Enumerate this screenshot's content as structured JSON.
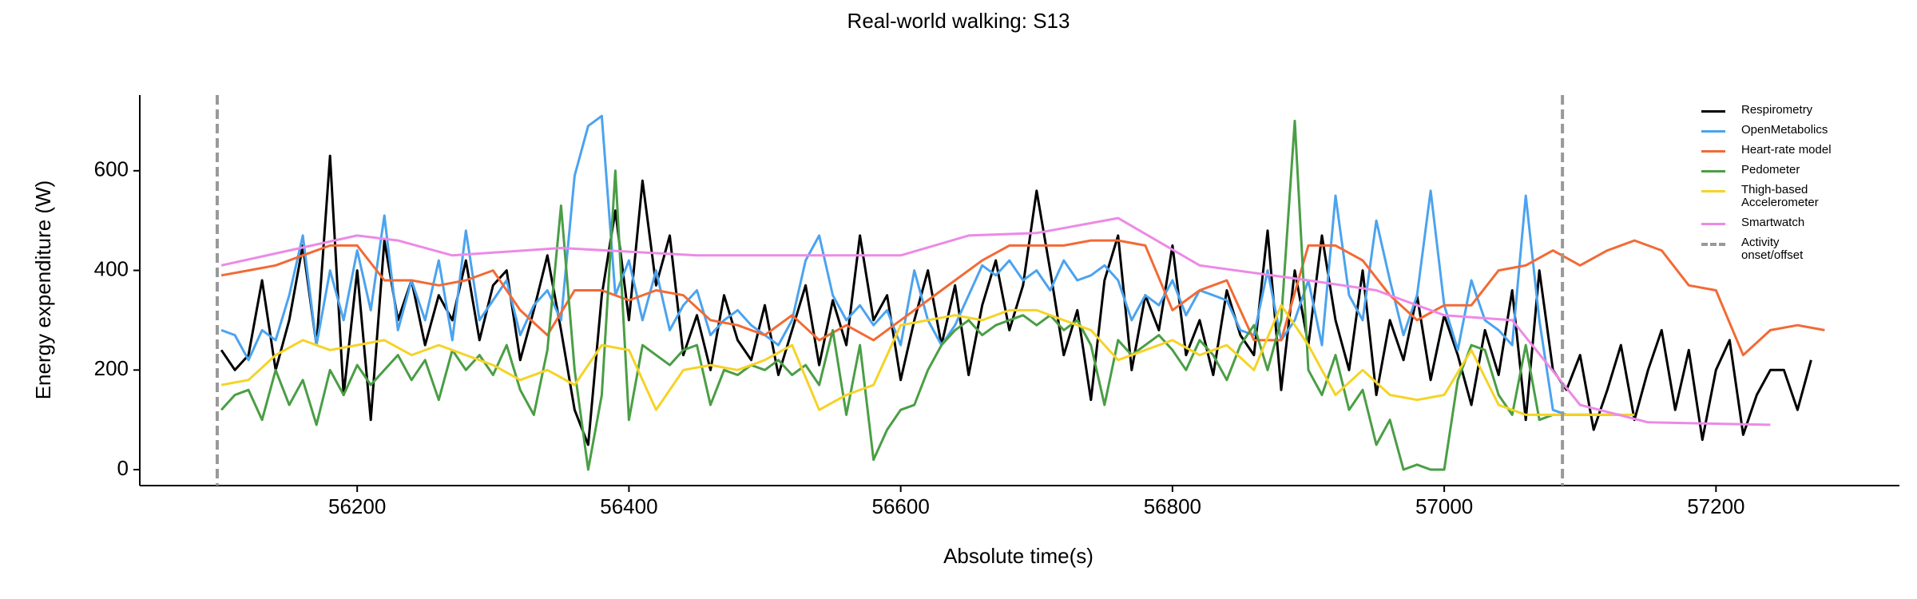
{
  "chart_data": {
    "type": "line",
    "title": "Real-world walking: S13",
    "x_label": "Absolute time(s)",
    "y_label": "Energy expenditure (W)",
    "xlim": [
      56040,
      57335
    ],
    "ylim": [
      -32,
      752
    ],
    "xticks": [
      56200,
      56400,
      56600,
      56800,
      57000,
      57200
    ],
    "yticks": [
      0,
      200,
      400,
      600
    ],
    "grid": false,
    "legend": "upper right",
    "series": [
      {
        "name": "Respirometry",
        "color": "#000000",
        "x": [
          56100,
          56110,
          56120,
          56130,
          56140,
          56150,
          56160,
          56170,
          56180,
          56190,
          56200,
          56210,
          56220,
          56230,
          56240,
          56250,
          56260,
          56270,
          56280,
          56290,
          56300,
          56310,
          56320,
          56330,
          56340,
          56350,
          56360,
          56370,
          56380,
          56390,
          56400,
          56410,
          56420,
          56430,
          56440,
          56450,
          56460,
          56470,
          56480,
          56490,
          56500,
          56510,
          56520,
          56530,
          56540,
          56550,
          56560,
          56570,
          56580,
          56590,
          56600,
          56610,
          56620,
          56630,
          56640,
          56650,
          56660,
          56670,
          56680,
          56690,
          56700,
          56710,
          56720,
          56730,
          56740,
          56750,
          56760,
          56770,
          56780,
          56790,
          56800,
          56810,
          56820,
          56830,
          56840,
          56850,
          56860,
          56870,
          56880,
          56890,
          56900,
          56910,
          56920,
          56930,
          56940,
          56950,
          56960,
          56970,
          56980,
          56990,
          57000,
          57010,
          57020,
          57030,
          57040,
          57050,
          57060,
          57070,
          57080,
          57090,
          57100,
          57110,
          57120,
          57130,
          57140,
          57150,
          57160,
          57170,
          57180,
          57190,
          57200,
          57210,
          57220,
          57230,
          57240,
          57250,
          57260,
          57270
        ],
        "values": [
          240,
          200,
          230,
          380,
          200,
          300,
          450,
          250,
          630,
          150,
          400,
          100,
          460,
          300,
          380,
          250,
          350,
          300,
          420,
          260,
          370,
          400,
          220,
          320,
          430,
          280,
          120,
          50,
          350,
          520,
          300,
          580,
          370,
          470,
          230,
          310,
          200,
          350,
          260,
          220,
          330,
          190,
          280,
          370,
          210,
          340,
          250,
          470,
          300,
          350,
          180,
          300,
          400,
          250,
          370,
          190,
          330,
          420,
          280,
          370,
          560,
          400,
          230,
          320,
          140,
          380,
          470,
          200,
          350,
          280,
          450,
          230,
          300,
          190,
          360,
          270,
          230,
          480,
          160,
          400,
          250,
          470,
          300,
          200,
          400,
          150,
          300,
          220,
          350,
          180,
          310,
          230,
          130,
          280,
          190,
          360,
          100,
          400,
          200,
          160,
          230,
          80,
          160,
          250,
          100,
          200,
          280,
          120,
          240,
          60,
          200,
          260,
          70,
          150,
          200,
          200,
          120,
          220
        ]
      },
      {
        "name": "OpenMetabolics",
        "color": "#4ba3ef",
        "x": [
          56100,
          56110,
          56120,
          56130,
          56140,
          56150,
          56160,
          56170,
          56180,
          56190,
          56200,
          56210,
          56220,
          56230,
          56240,
          56250,
          56260,
          56270,
          56280,
          56290,
          56300,
          56310,
          56320,
          56330,
          56340,
          56350,
          56360,
          56370,
          56380,
          56390,
          56400,
          56410,
          56420,
          56430,
          56440,
          56450,
          56460,
          56470,
          56480,
          56490,
          56500,
          56510,
          56520,
          56530,
          56540,
          56550,
          56560,
          56570,
          56580,
          56590,
          56600,
          56610,
          56620,
          56630,
          56640,
          56650,
          56660,
          56670,
          56680,
          56690,
          56700,
          56710,
          56720,
          56730,
          56740,
          56750,
          56760,
          56770,
          56780,
          56790,
          56800,
          56810,
          56820,
          56830,
          56840,
          56850,
          56860,
          56870,
          56880,
          56890,
          56900,
          56910,
          56920,
          56930,
          56940,
          56950,
          56960,
          56970,
          56980,
          56990,
          57000,
          57010,
          57020,
          57030,
          57040,
          57050,
          57060,
          57070,
          57080,
          57090,
          57100,
          57110,
          57120,
          57130
        ],
        "values": [
          280,
          270,
          220,
          280,
          260,
          350,
          470,
          250,
          400,
          300,
          440,
          320,
          510,
          280,
          380,
          300,
          420,
          260,
          480,
          300,
          340,
          380,
          270,
          330,
          360,
          300,
          590,
          690,
          710,
          350,
          420,
          300,
          400,
          280,
          330,
          360,
          270,
          300,
          320,
          290,
          270,
          250,
          300,
          420,
          470,
          350,
          300,
          330,
          290,
          320,
          250,
          400,
          300,
          250,
          290,
          350,
          410,
          390,
          420,
          380,
          400,
          360,
          420,
          380,
          390,
          410,
          380,
          300,
          350,
          330,
          380,
          310,
          360,
          350,
          340,
          280,
          270,
          400,
          260,
          300,
          380,
          250,
          550,
          350,
          300,
          500,
          380,
          270,
          350,
          560,
          330,
          240,
          380,
          300,
          280,
          250,
          550,
          300,
          120,
          110,
          110,
          110,
          110,
          110
        ]
      },
      {
        "name": "Heart-rate model",
        "color": "#f26a35",
        "x": [
          56100,
          56120,
          56140,
          56160,
          56180,
          56200,
          56220,
          56240,
          56260,
          56280,
          56300,
          56320,
          56340,
          56360,
          56380,
          56400,
          56420,
          56440,
          56460,
          56480,
          56500,
          56520,
          56540,
          56560,
          56580,
          56600,
          56620,
          56640,
          56660,
          56680,
          56700,
          56720,
          56740,
          56760,
          56780,
          56800,
          56820,
          56840,
          56860,
          56880,
          56900,
          56920,
          56940,
          56960,
          56980,
          57000,
          57020,
          57040,
          57060,
          57080,
          57100,
          57120,
          57140,
          57160,
          57180,
          57200,
          57220,
          57240,
          57260,
          57280
        ],
        "values": [
          390,
          400,
          410,
          430,
          450,
          450,
          380,
          380,
          370,
          380,
          400,
          320,
          270,
          360,
          360,
          340,
          360,
          350,
          300,
          290,
          270,
          310,
          260,
          290,
          260,
          300,
          340,
          380,
          420,
          450,
          450,
          450,
          460,
          460,
          450,
          320,
          360,
          380,
          260,
          260,
          450,
          450,
          420,
          350,
          300,
          330,
          330,
          400,
          410,
          440,
          410,
          440,
          460,
          440,
          370,
          360,
          230,
          280,
          290,
          280
        ]
      },
      {
        "name": "Pedometer",
        "color": "#4a9e45",
        "x": [
          56100,
          56110,
          56120,
          56130,
          56140,
          56150,
          56160,
          56170,
          56180,
          56190,
          56200,
          56210,
          56220,
          56230,
          56240,
          56250,
          56260,
          56270,
          56280,
          56290,
          56300,
          56310,
          56320,
          56330,
          56340,
          56350,
          56360,
          56370,
          56380,
          56390,
          56400,
          56410,
          56420,
          56430,
          56440,
          56450,
          56460,
          56470,
          56480,
          56490,
          56500,
          56510,
          56520,
          56530,
          56540,
          56550,
          56560,
          56570,
          56580,
          56590,
          56600,
          56610,
          56620,
          56630,
          56640,
          56650,
          56660,
          56670,
          56680,
          56690,
          56700,
          56710,
          56720,
          56730,
          56740,
          56750,
          56760,
          56770,
          56780,
          56790,
          56800,
          56810,
          56820,
          56830,
          56840,
          56850,
          56860,
          56870,
          56880,
          56890,
          56900,
          56910,
          56920,
          56930,
          56940,
          56950,
          56960,
          56970,
          56980,
          56990,
          57000,
          57010,
          57020,
          57030,
          57040,
          57050,
          57060,
          57070,
          57080,
          57090,
          57100,
          57110,
          57120,
          57130
        ],
        "values": [
          120,
          150,
          160,
          100,
          200,
          130,
          180,
          90,
          200,
          150,
          210,
          170,
          200,
          230,
          180,
          220,
          140,
          240,
          200,
          230,
          190,
          250,
          160,
          110,
          240,
          530,
          200,
          0,
          150,
          600,
          100,
          250,
          230,
          210,
          240,
          250,
          130,
          200,
          190,
          210,
          200,
          220,
          190,
          210,
          170,
          280,
          110,
          250,
          20,
          80,
          120,
          130,
          200,
          250,
          280,
          300,
          270,
          290,
          300,
          310,
          290,
          310,
          280,
          300,
          250,
          130,
          260,
          230,
          250,
          270,
          240,
          200,
          260,
          230,
          180,
          250,
          290,
          200,
          300,
          700,
          200,
          150,
          230,
          120,
          160,
          50,
          100,
          0,
          10,
          0,
          0,
          180,
          250,
          240,
          150,
          110,
          250,
          100,
          110,
          110,
          110,
          110,
          110,
          110
        ]
      },
      {
        "name": "Thigh-based Accelerometer",
        "color": "#f5d327",
        "x": [
          56100,
          56120,
          56140,
          56160,
          56180,
          56200,
          56220,
          56240,
          56260,
          56280,
          56300,
          56320,
          56340,
          56360,
          56380,
          56400,
          56420,
          56440,
          56460,
          56480,
          56500,
          56520,
          56540,
          56560,
          56580,
          56600,
          56620,
          56640,
          56660,
          56680,
          56700,
          56720,
          56740,
          56760,
          56780,
          56800,
          56820,
          56840,
          56860,
          56880,
          56900,
          56920,
          56940,
          56960,
          56980,
          57000,
          57020,
          57040,
          57060,
          57080,
          57100,
          57120,
          57140
        ],
        "values": [
          170,
          180,
          230,
          260,
          240,
          250,
          260,
          230,
          250,
          230,
          210,
          180,
          200,
          170,
          250,
          240,
          120,
          200,
          210,
          200,
          220,
          250,
          120,
          150,
          170,
          290,
          300,
          310,
          300,
          320,
          320,
          300,
          280,
          220,
          240,
          260,
          230,
          250,
          200,
          330,
          250,
          150,
          200,
          150,
          140,
          150,
          240,
          130,
          110,
          110,
          110,
          110,
          110
        ]
      },
      {
        "name": "Smartwatch",
        "color": "#ec8ae6",
        "x": [
          56100,
          56150,
          56200,
          56230,
          56270,
          56350,
          56450,
          56600,
          56650,
          56700,
          56760,
          56820,
          56900,
          56950,
          57000,
          57050,
          57100,
          57150,
          57240
        ],
        "values": [
          410,
          440,
          470,
          460,
          430,
          445,
          430,
          430,
          470,
          475,
          505,
          410,
          380,
          360,
          310,
          300,
          130,
          95,
          90
        ]
      }
    ],
    "markers": {
      "name": "Activity onset/offset",
      "color": "#999999",
      "x": [
        56097,
        57087
      ]
    }
  }
}
